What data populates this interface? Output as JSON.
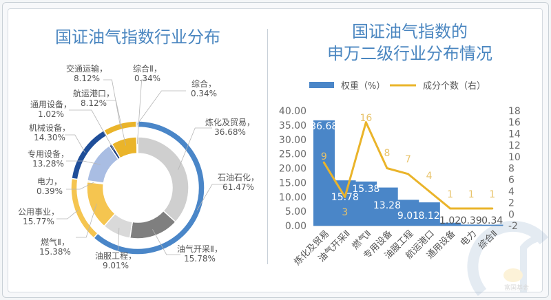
{
  "left_title": "国证油气指数行业分布",
  "right_title_line1": "国证油气指数的",
  "right_title_line2": "申万二级行业分布情况",
  "watermark": "富国基金",
  "chart_data": [
    {
      "type": "pie",
      "variant": "nested-donut",
      "title": "国证油气指数行业分布",
      "outer_ring": [
        {
          "name": "石油石化",
          "value": 61.47,
          "label": "石油石化，",
          "pct": "61.47%",
          "color": "#4a86c8"
        },
        {
          "name": "公用事业",
          "value": 15.77,
          "label": "公用事业，",
          "pct": "15.77%",
          "color": "#f5c550"
        },
        {
          "name": "机械设备",
          "value": 14.3,
          "label": "机械设备，",
          "pct": "14.30%",
          "color": "#1f4e99"
        },
        {
          "name": "交通运输",
          "value": 8.12,
          "label": "交通运输，",
          "pct": "8.12%",
          "color": "#eab42a"
        },
        {
          "name": "综合",
          "value": 0.34,
          "label": "综合，",
          "pct": "0.34%",
          "color": "#8aa6c8"
        }
      ],
      "inner_ring": [
        {
          "name": "炼化及贸易",
          "value": 36.68,
          "label": "炼化及贸易，",
          "pct": "36.68%",
          "color": "#cfcfcf"
        },
        {
          "name": "油气开采II",
          "value": 15.78,
          "label": "油气开采Ⅱ，",
          "pct": "15.78%",
          "color": "#7f7f7f"
        },
        {
          "name": "油服工程",
          "value": 9.01,
          "label": "油服工程，",
          "pct": "9.01%",
          "color": "#d9d9d9"
        },
        {
          "name": "燃气II",
          "value": 15.38,
          "label": "燃气Ⅱ，",
          "pct": "15.38%",
          "color": "#f5c550"
        },
        {
          "name": "电力",
          "value": 0.39,
          "label": "电力，",
          "pct": "0.39%",
          "color": "#f8d37a"
        },
        {
          "name": "专用设备",
          "value": 13.28,
          "label": "专用设备，",
          "pct": "13.28%",
          "color": "#a9bde3"
        },
        {
          "name": "通用设备",
          "value": 1.02,
          "label": "通用设备，",
          "pct": "1.02%",
          "color": "#1f3f80"
        },
        {
          "name": "航运港口",
          "value": 8.12,
          "label": "航运港口，",
          "pct": "8.12%",
          "color": "#eab42a"
        },
        {
          "name": "综合II",
          "value": 0.34,
          "label": "综合Ⅱ，",
          "pct": "0.34%",
          "color": "#b0b0b0"
        }
      ]
    },
    {
      "type": "bar",
      "combo": "bar+line",
      "title": "国证油气指数的申万二级行业分布情况",
      "categories": [
        "炼化及贸易",
        "油气开采Ⅱ",
        "燃气Ⅱ",
        "专用设备",
        "油服工程",
        "航运港口",
        "通用设备",
        "电力",
        "综合Ⅱ"
      ],
      "series": [
        {
          "name": "权重（%）",
          "type": "bar",
          "axis": "left",
          "color": "#4a86c8",
          "values": [
            36.68,
            15.78,
            15.38,
            13.28,
            9.01,
            8.12,
            1.02,
            0.39,
            0.34
          ],
          "labels": [
            "36.68",
            "15.78",
            "15.38",
            "13.28",
            "9.01",
            "8.12",
            "1.02",
            "0.39",
            "0.34"
          ]
        },
        {
          "name": "成分个数（右）",
          "type": "line",
          "axis": "right",
          "color": "#eab42a",
          "values": [
            9,
            3,
            16,
            8,
            7,
            4,
            1,
            1,
            1
          ],
          "labels": [
            "9",
            "3",
            "16",
            "8",
            "7",
            "4",
            "1",
            "1",
            "1"
          ]
        }
      ],
      "ylim_left": [
        0,
        40
      ],
      "yticks_left": [
        "0.00",
        "5.00",
        "10.00",
        "15.00",
        "20.00",
        "25.00",
        "30.00",
        "35.00",
        "40.00"
      ],
      "ylim_right": [
        -2,
        18
      ],
      "yticks_right": [
        "-2",
        "0",
        "2",
        "4",
        "6",
        "8",
        "10",
        "12",
        "14",
        "16",
        "18"
      ],
      "legend_position": "top",
      "grid": false
    }
  ]
}
